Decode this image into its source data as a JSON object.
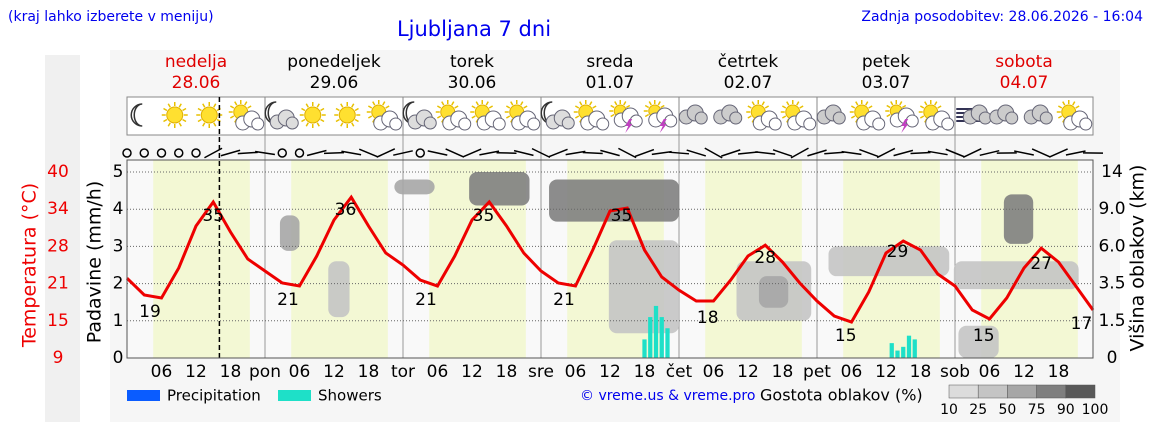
{
  "header": {
    "hint": "(kraj lahko izberete v meniju)",
    "title": "Ljubljana 7 dni",
    "updated": "Zadnja posodobitev: 28.06.2026 - 16:04"
  },
  "chart_data": {
    "type": "meteogram",
    "days": [
      {
        "name": "nedelja",
        "date": "28.06",
        "color": "#e00000"
      },
      {
        "name": "ponedeljek",
        "date": "29.06",
        "color": "#000000"
      },
      {
        "name": "torek",
        "date": "30.06",
        "color": "#000000"
      },
      {
        "name": "sreda",
        "date": "01.07",
        "color": "#000000"
      },
      {
        "name": "četrtek",
        "date": "02.07",
        "color": "#000000"
      },
      {
        "name": "petek",
        "date": "03.07",
        "color": "#000000"
      },
      {
        "name": "sobota",
        "date": "04.07",
        "color": "#e00000"
      }
    ],
    "icons": [
      "moon",
      "sun",
      "sun",
      "suncloud",
      "mooncloud",
      "sun",
      "sun",
      "suncloud",
      "mooncloud",
      "suncloud",
      "suncloud",
      "suncloud",
      "mooncloud",
      "suncloud",
      "storm",
      "storm",
      "cloud",
      "cloud",
      "suncloud",
      "suncloud",
      "cloud",
      "suncloud",
      "storm",
      "suncloud",
      "fog",
      "cloud",
      "cloud",
      "suncloud"
    ],
    "xlim": [
      0,
      168
    ],
    "xticks": [
      {
        "value": 6,
        "label": "06"
      },
      {
        "value": 12,
        "label": "12"
      },
      {
        "value": 18,
        "label": "18"
      },
      {
        "value": 24,
        "label": "pon"
      },
      {
        "value": 30,
        "label": "06"
      },
      {
        "value": 36,
        "label": "12"
      },
      {
        "value": 42,
        "label": "18"
      },
      {
        "value": 48,
        "label": "tor"
      },
      {
        "value": 54,
        "label": "06"
      },
      {
        "value": 60,
        "label": "12"
      },
      {
        "value": 66,
        "label": "18"
      },
      {
        "value": 72,
        "label": "sre"
      },
      {
        "value": 78,
        "label": "06"
      },
      {
        "value": 84,
        "label": "12"
      },
      {
        "value": 90,
        "label": "18"
      },
      {
        "value": 96,
        "label": "čet"
      },
      {
        "value": 102,
        "label": "06"
      },
      {
        "value": 108,
        "label": "12"
      },
      {
        "value": 114,
        "label": "18"
      },
      {
        "value": 120,
        "label": "pet"
      },
      {
        "value": 126,
        "label": "06"
      },
      {
        "value": 132,
        "label": "12"
      },
      {
        "value": 138,
        "label": "18"
      },
      {
        "value": 144,
        "label": "sob"
      },
      {
        "value": 150,
        "label": "06"
      },
      {
        "value": 156,
        "label": "12"
      },
      {
        "value": 162,
        "label": "18"
      }
    ],
    "now": 16.07,
    "y_label": "Padavine (mm/h)",
    "ylim": [
      0,
      5
    ],
    "yticks": [
      0,
      1,
      2,
      3,
      4,
      5
    ],
    "grid": true,
    "temperature": {
      "label": "Temperatura (°C)",
      "color": "#ee0000",
      "ylim": [
        9,
        40
      ],
      "yticks": [
        {
          "value": 9,
          "label": "9"
        },
        {
          "value": 15.2,
          "label": "15"
        },
        {
          "value": 21.4,
          "label": "21"
        },
        {
          "value": 27.6,
          "label": "28"
        },
        {
          "value": 33.8,
          "label": "34"
        },
        {
          "value": 40,
          "label": "40"
        }
      ],
      "x": [
        0,
        3,
        6,
        9,
        12,
        15,
        18,
        21,
        24,
        27,
        30,
        33,
        36,
        39,
        42,
        45,
        48,
        51,
        54,
        57,
        60,
        63,
        66,
        69,
        72,
        75,
        78,
        81,
        84,
        87,
        90,
        93,
        96,
        99,
        102,
        105,
        108,
        111,
        114,
        117,
        120,
        123,
        126,
        129,
        132,
        135,
        138,
        141,
        144,
        147,
        150,
        153,
        156,
        159,
        162,
        165,
        168
      ],
      "values": [
        22.3,
        19.5,
        19,
        24,
        31,
        35,
        30,
        25.5,
        23.5,
        21.5,
        21,
        26,
        32,
        35.8,
        31,
        26.5,
        24.5,
        22,
        21,
        26,
        32,
        35,
        31,
        26.5,
        23.5,
        21.5,
        21,
        27,
        33.5,
        34,
        27,
        22.5,
        20.3,
        18.5,
        18.5,
        22,
        26,
        27.8,
        25,
        21.5,
        18.5,
        16,
        15,
        20,
        26.5,
        28.5,
        27,
        23,
        21,
        17,
        15.5,
        19,
        24,
        27.3,
        25,
        21,
        17
      ],
      "labels": [
        {
          "x": 4,
          "value": 19
        },
        {
          "x": 15,
          "value": 35
        },
        {
          "x": 28,
          "value": 21
        },
        {
          "x": 38,
          "value": 36
        },
        {
          "x": 52,
          "value": 21
        },
        {
          "x": 62,
          "value": 35
        },
        {
          "x": 76,
          "value": 21
        },
        {
          "x": 86,
          "value": 35
        },
        {
          "x": 101,
          "value": 18
        },
        {
          "x": 111,
          "value": 28
        },
        {
          "x": 125,
          "value": 15
        },
        {
          "x": 134,
          "value": 29
        },
        {
          "x": 149,
          "value": 15
        },
        {
          "x": 159,
          "value": 27
        },
        {
          "x": 166,
          "value": 17
        }
      ]
    },
    "series": [
      {
        "name": "Precipitation",
        "color": "#0a5cff",
        "x": [],
        "values": []
      },
      {
        "name": "Showers",
        "color": "#1ee0c8",
        "x": [
          90,
          91,
          92,
          93,
          94,
          133,
          134,
          135,
          136,
          137
        ],
        "values": [
          0.5,
          1.1,
          1.4,
          1.1,
          0.8,
          0.4,
          0.2,
          0.3,
          0.6,
          0.5
        ]
      }
    ],
    "y2_label": "Višina oblakov (km)",
    "y2ticks": [
      0,
      1.5,
      3.5,
      {
        "value": 6,
        "label": "6.0"
      },
      {
        "value": 9,
        "label": "9.0"
      },
      14
    ],
    "clouds": [
      {
        "x": [
          26.6,
          30
        ],
        "km": [
          5.7,
          8.5
        ],
        "density": 60
      },
      {
        "x": [
          35,
          38.7
        ],
        "km": [
          1.7,
          5
        ],
        "density": 40
      },
      {
        "x": [
          46.5,
          53.5
        ],
        "km": [
          11,
          13
        ],
        "density": 60
      },
      {
        "x": [
          59.5,
          70
        ],
        "km": [
          9.5,
          14
        ],
        "density": 80
      },
      {
        "x": [
          73.4,
          96
        ],
        "km": [
          8,
          13
        ],
        "density": 75
      },
      {
        "x": [
          83.8,
          96
        ],
        "km": [
          1,
          6.5
        ],
        "density": 30
      },
      {
        "x": [
          106,
          119
        ],
        "km": [
          1.5,
          5
        ],
        "density": 25
      },
      {
        "x": [
          109.9,
          115
        ],
        "km": [
          2.2,
          4
        ],
        "density": 50
      },
      {
        "x": [
          122,
          143
        ],
        "km": [
          4,
          6
        ],
        "density": 35
      },
      {
        "x": [
          143.8,
          165.5
        ],
        "km": [
          3.2,
          5
        ],
        "density": 30
      },
      {
        "x": [
          152.5,
          157.6
        ],
        "km": [
          6.2,
          11
        ],
        "density": 75
      },
      {
        "x": [
          144.6,
          151.6
        ],
        "km": [
          0,
          1.3
        ],
        "density": 40
      }
    ],
    "copyright": "© vreme.us & vreme.pro",
    "cloud_legend": {
      "title": "Gostota oblakov (%)",
      "ticks": [
        10,
        25,
        50,
        75,
        90,
        100
      ],
      "colors": [
        "#dcdcdc",
        "#c4c4c4",
        "#a6a6a6",
        "#7f7f7f",
        "#595959"
      ]
    }
  }
}
